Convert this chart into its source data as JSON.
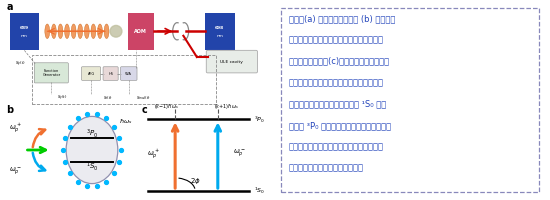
{
  "panel_a_label": "a",
  "panel_b_label": "b",
  "panel_c_label": "c",
  "chinese_text_line1": "图示：(a) 实验的装置示意图 (b) 通过对晶",
  "chinese_text_line2": "格激光进行周期性驱动，可以在原子周围产",
  "chinese_text_line3": "生弗洛凯准粒子。(c)钟激光上的周期性驱动",
  "chinese_text_line4": "导致两条通道产生，从而通过不同过程，原",
  "chinese_text_line5": "子可以借助弗洛凯准粒子辅助从 ¹S₀ 能级",
  "chinese_text_line6": "跃迁到 ³P₀ 能级。由于两个过程之间存在与",
  "chinese_text_line7": "初始过程相关的相对相位差，从而会发生不",
  "chinese_text_line8": "同弗洛凯准粒子之间的干涉效应。",
  "bg_color": "#ffffff",
  "blue_box": "#2244aa",
  "pink_box": "#cc4466",
  "cyan_dot_color": "#00b8ff",
  "orange_arrow": "#f07030",
  "cyan_arrow": "#00aaee",
  "red_beam": "#cc0000",
  "green_color": "#00bb00",
  "text_color": "#2244bb",
  "border_color": "#8888bb"
}
